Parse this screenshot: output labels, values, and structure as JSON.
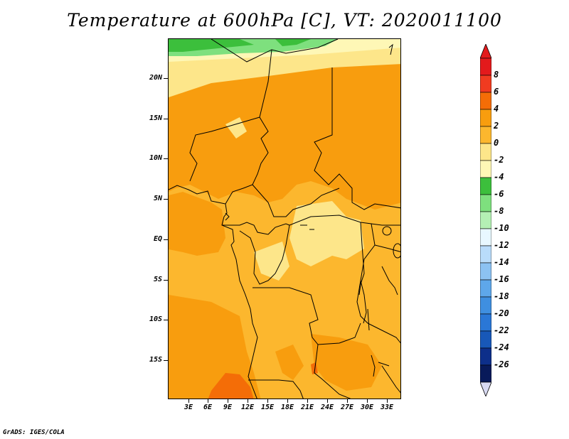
{
  "title": "Temperature at 600hPa [C], VT: 2020011100",
  "footer": "GrADS: IGES/COLA",
  "lat_labels": [
    "20N",
    "15N",
    "10N",
    "5N",
    "EQ",
    "5S",
    "10S",
    "15S"
  ],
  "lon_labels": [
    "3E",
    "6E",
    "9E",
    "12E",
    "15E",
    "18E",
    "21E",
    "24E",
    "27E",
    "30E",
    "33E"
  ],
  "colorbar": {
    "labels": [
      "8",
      "6",
      "4",
      "2",
      "0",
      "-2",
      "-4",
      "-6",
      "-8",
      "-10",
      "-12",
      "-14",
      "-16",
      "-18",
      "-20",
      "-22",
      "-24",
      "-26"
    ],
    "colors": [
      "#e31a1c",
      "#f03b20",
      "#f46d07",
      "#f89d0e",
      "#fcb72e",
      "#fde68a",
      "#fef7b6",
      "#3cbf3c",
      "#7ee07e",
      "#b4f0b4",
      "#e8f8ff",
      "#b9dcfa",
      "#8cc2f2",
      "#5ea7ea",
      "#3f8fe0",
      "#2a77d6",
      "#1858b8",
      "#0d2f8a",
      "#081a5a"
    ],
    "over_color": "#e31a1c",
    "under_color": "#d8daf2"
  },
  "map": {
    "region": "Central Africa",
    "field": "temperature",
    "unit": "C",
    "valid_time": "2020011100"
  }
}
